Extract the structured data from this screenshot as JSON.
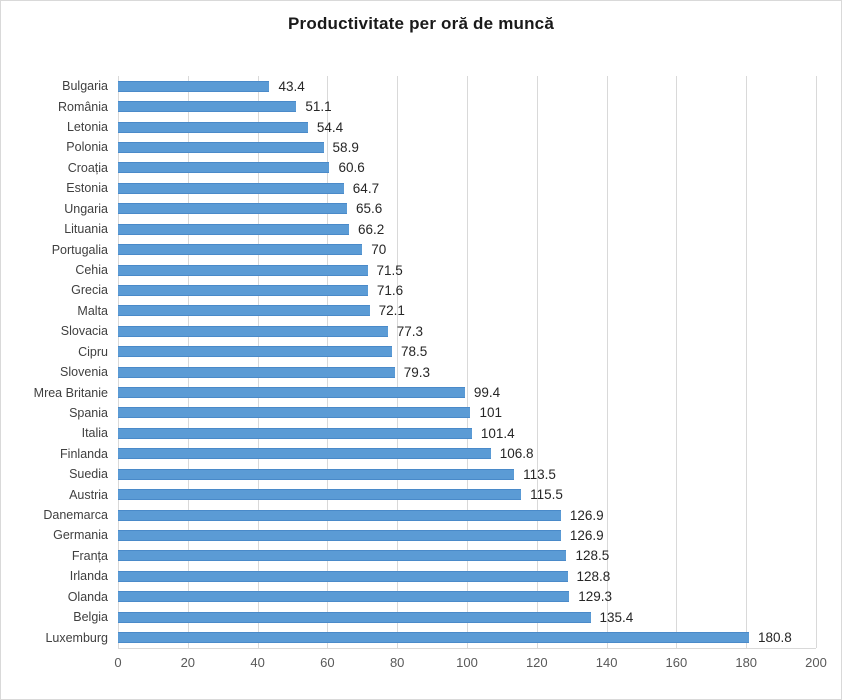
{
  "chart_data": {
    "type": "bar",
    "orientation": "horizontal",
    "title": "Productivitate per oră de muncă",
    "categories": [
      "Bulgaria",
      "România",
      "Letonia",
      "Polonia",
      "Croația",
      "Estonia",
      "Ungaria",
      "Lituania",
      "Portugalia",
      "Cehia",
      "Grecia",
      "Malta",
      "Slovacia",
      "Cipru",
      "Slovenia",
      "Mrea Britanie",
      "Spania",
      "Italia",
      "Finlanda",
      "Suedia",
      "Austria",
      "Danemarca",
      "Germania",
      "Franța",
      "Irlanda",
      "Olanda",
      "Belgia",
      "Luxemburg"
    ],
    "values": [
      43.4,
      51.1,
      54.4,
      58.9,
      60.6,
      64.7,
      65.6,
      66.2,
      70,
      71.5,
      71.6,
      72.1,
      77.3,
      78.5,
      79.3,
      99.4,
      101,
      101.4,
      106.8,
      113.5,
      115.5,
      126.9,
      126.9,
      128.5,
      128.8,
      129.3,
      135.4,
      180.8
    ],
    "value_labels": [
      "43.4",
      "51.1",
      "54.4",
      "58.9",
      "60.6",
      "64.7",
      "65.6",
      "66.2",
      "70",
      "71.5",
      "71.6",
      "72.1",
      "77.3",
      "78.5",
      "79.3",
      "99.4",
      "101",
      "101.4",
      "106.8",
      "113.5",
      "115.5",
      "126.9",
      "126.9",
      "128.5",
      "128.8",
      "129.3",
      "135.4",
      "180.8"
    ],
    "xlabel": "",
    "ylabel": "",
    "xlim": [
      0,
      200
    ],
    "x_ticks": [
      "0",
      "20",
      "40",
      "60",
      "80",
      "100",
      "120",
      "140",
      "160",
      "180",
      "200"
    ],
    "grid": "vertical-on",
    "legend": "none",
    "data_labels": "outside-end"
  },
  "colors": {
    "bar": "#5B9BD5",
    "grid": "#D9D9D9",
    "axis_line": "#D9D9D9",
    "title_text": "#1A1A1A",
    "category_text": "#404040",
    "value_text": "#262626",
    "tick_text": "#595959",
    "background": "#FFFFFF",
    "border": "#D9D9D9"
  }
}
